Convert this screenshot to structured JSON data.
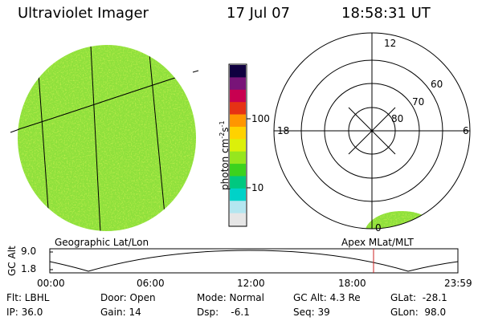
{
  "header": {
    "title": "Ultraviolet Imager",
    "date": "17 Jul 07",
    "time": "18:58:31 UT"
  },
  "colorbar": {
    "label": "photon cm",
    "label_exp1": "-2",
    "label_s": "s",
    "label_exp2": "-1",
    "ticks": [
      "100",
      "10"
    ],
    "colors": [
      "#e6e6e6",
      "#b4e6f0",
      "#00d2c8",
      "#00c880",
      "#3cd21e",
      "#96e61e",
      "#dcf00a",
      "#ffd200",
      "#ff9600",
      "#e63214",
      "#c80050",
      "#781478",
      "#100040"
    ]
  },
  "polar_plot": {
    "mlt_labels": [
      "12",
      "18",
      "6",
      "0"
    ],
    "lat_labels": [
      "60",
      "70",
      "80"
    ]
  },
  "timeline": {
    "left_label": "Geographic Lat/Lon",
    "right_label": "Apex MLat/MLT",
    "y_axis_label": "GC Alt",
    "y_ticks": [
      "9.0",
      "1.8"
    ],
    "x_ticks": [
      "00:00",
      "06:00",
      "12:00",
      "18:00",
      "23:59"
    ],
    "current_time_marker_color": "#cc2222"
  },
  "info": {
    "flt": "Flt: LBHL",
    "ip": "IP: 36.0",
    "door": "Door: Open",
    "gain": "Gain: 14",
    "mode": "Mode: Normal",
    "dsp": "Dsp:    -6.1",
    "gc_alt": "GC Alt: 4.3 Re",
    "seq": "Seq: 39",
    "glat": "GLat:  -28.1",
    "glon": "GLon:  98.0"
  }
}
